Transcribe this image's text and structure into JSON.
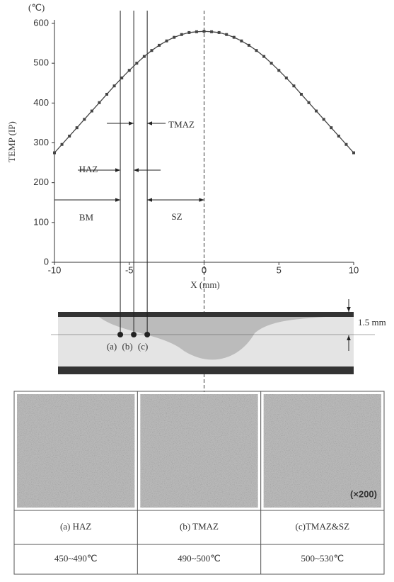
{
  "chart_data": {
    "type": "line",
    "y_unit": "(℃)",
    "ylabel": "TEMP (IP)",
    "xlabel": "X (mm)",
    "x": [
      -10,
      -9.5,
      -9,
      -8.5,
      -8,
      -7.5,
      -7,
      -6.5,
      -6,
      -5.5,
      -5,
      -4.5,
      -4,
      -3.5,
      -3,
      -2.5,
      -2,
      -1.5,
      -1,
      -0.5,
      0,
      0.5,
      1,
      1.5,
      2,
      2.5,
      3,
      3.5,
      4,
      4.5,
      5,
      5.5,
      6,
      6.5,
      7,
      7.5,
      8,
      8.5,
      9,
      9.5,
      10
    ],
    "series": [
      {
        "color": "#444444",
        "values": [
          275,
          296,
          317,
          338,
          359,
          380,
          401,
          422,
          443,
          463,
          482,
          500,
          517,
          532,
          545,
          556,
          565,
          572,
          577,
          579,
          580,
          579,
          577,
          572,
          565,
          556,
          545,
          532,
          517,
          500,
          482,
          463,
          443,
          422,
          401,
          380,
          359,
          338,
          317,
          296,
          275
        ]
      }
    ],
    "xlim": [
      -10,
      10
    ],
    "ylim": [
      0,
      600
    ],
    "xticks": [
      -10,
      -5,
      0,
      5,
      10
    ],
    "yticks": [
      0,
      100,
      200,
      300,
      400,
      500,
      600
    ],
    "zones": [
      {
        "label": "(a)",
        "x": -5.6
      },
      {
        "label": "(b)",
        "x": -4.7
      },
      {
        "label": "(c)",
        "x": -3.8
      }
    ],
    "region_labels": {
      "bm": "BM",
      "haz": "HAZ",
      "tmaz": "TMAZ",
      "sz": "SZ"
    }
  },
  "section": {
    "thickness_label": "1.5 mm"
  },
  "micrographs": {
    "magnification": "(×200)",
    "columns": [
      {
        "label": "(a) HAZ",
        "temp": "450~490℃"
      },
      {
        "label": "(b) TMAZ",
        "temp": "490~500℃"
      },
      {
        "label": "(c)TMAZ&SZ",
        "temp": "500~530℃"
      }
    ]
  }
}
